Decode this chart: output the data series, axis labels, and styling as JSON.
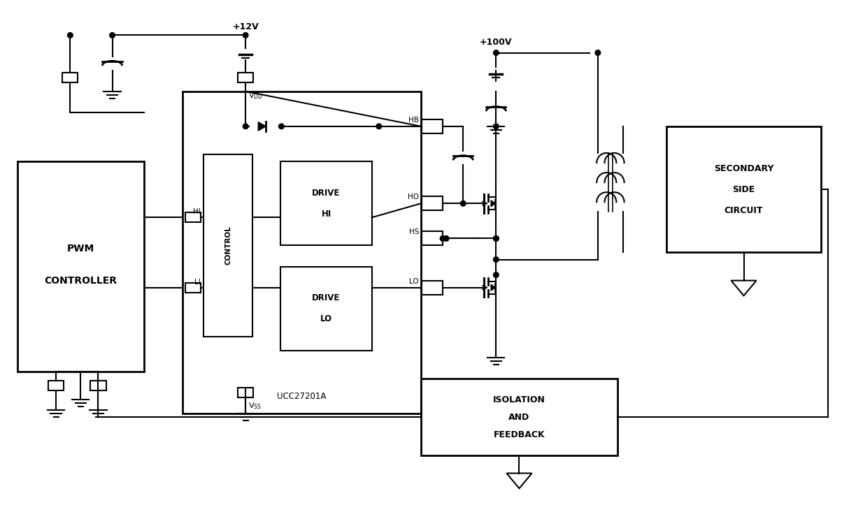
{
  "bg_color": "#ffffff",
  "lc": "#000000",
  "lw": 1.5,
  "figsize": [
    12.04,
    7.33
  ],
  "dpi": 100,
  "xlim": [
    0,
    120
  ],
  "ylim": [
    0,
    73
  ]
}
